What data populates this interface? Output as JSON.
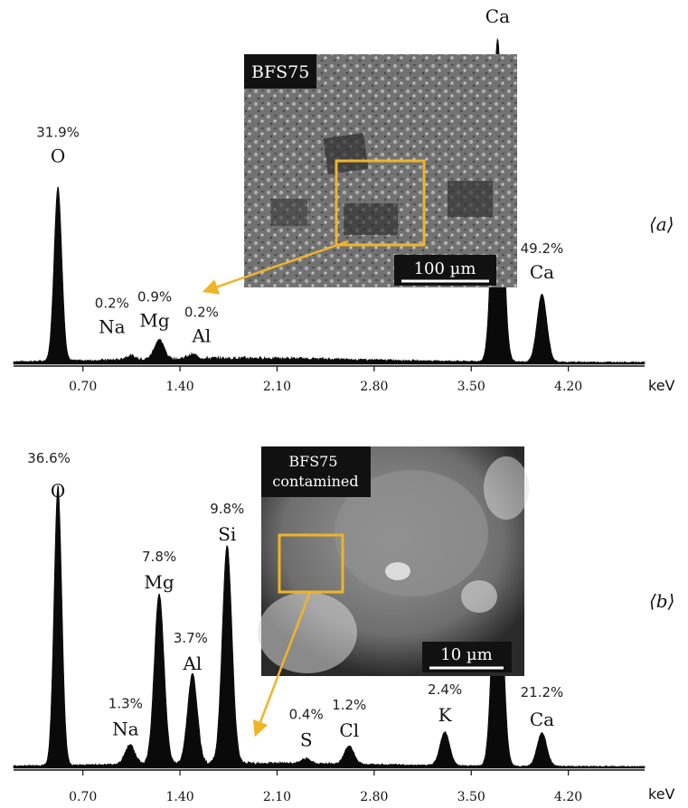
{
  "chart_data": [
    {
      "type": "line",
      "panel_label": "⟨a⟩",
      "x_unit": "keV",
      "xticks": [
        "0.70",
        "1.40",
        "2.10",
        "2.80",
        "3.50",
        "4.20"
      ],
      "xlim": [
        0.2,
        4.75
      ],
      "grid": false,
      "peaks": [
        {
          "element": "O",
          "percent": "31.9%",
          "energy": 0.52,
          "height": 0.54
        },
        {
          "element": "Na",
          "percent": "0.2%",
          "energy": 1.04,
          "height": 0.012
        },
        {
          "element": "Mg",
          "percent": "0.9%",
          "energy": 1.25,
          "height": 0.06
        },
        {
          "element": "Al",
          "percent": "0.2%",
          "energy": 1.49,
          "height": 0.012
        },
        {
          "element": "Ca",
          "percent": "",
          "energy": 3.69,
          "height": 1.0
        },
        {
          "element": "Ca",
          "percent": "49.2%",
          "energy": 4.01,
          "height": 0.21
        }
      ],
      "inset": {
        "label": "BFS75",
        "scale_bar": "100 µm"
      }
    },
    {
      "type": "line",
      "panel_label": "⟨b⟩",
      "x_unit": "keV",
      "xticks": [
        "0.70",
        "1.40",
        "2.10",
        "2.80",
        "3.50",
        "4.20"
      ],
      "xlim": [
        0.2,
        4.75
      ],
      "grid": false,
      "peaks": [
        {
          "element": "O",
          "percent": "36.6%",
          "energy": 0.52,
          "height": 1.0
        },
        {
          "element": "Na",
          "percent": "1.3%",
          "energy": 1.04,
          "height": 0.07
        },
        {
          "element": "Mg",
          "percent": "7.8%",
          "energy": 1.25,
          "height": 0.61
        },
        {
          "element": "Al",
          "percent": "3.7%",
          "energy": 1.49,
          "height": 0.32
        },
        {
          "element": "Si",
          "percent": "9.8%",
          "energy": 1.74,
          "height": 0.78
        },
        {
          "element": "S",
          "percent": "0.4%",
          "energy": 2.31,
          "height": 0.015
        },
        {
          "element": "Cl",
          "percent": "1.2%",
          "energy": 2.62,
          "height": 0.065
        },
        {
          "element": "K",
          "percent": "2.4%",
          "energy": 3.31,
          "height": 0.12
        },
        {
          "element": "Ca",
          "percent": "",
          "energy": 3.69,
          "height": 0.96
        },
        {
          "element": "Ca",
          "percent": "21.2%",
          "energy": 4.01,
          "height": 0.12
        }
      ],
      "inset": {
        "label": "BFS75 contamined",
        "scale_bar": "10 µm"
      }
    }
  ],
  "colors": {
    "spectrum": "#0a0a0a",
    "highlight": "#f0b429",
    "axis": "#111111"
  }
}
